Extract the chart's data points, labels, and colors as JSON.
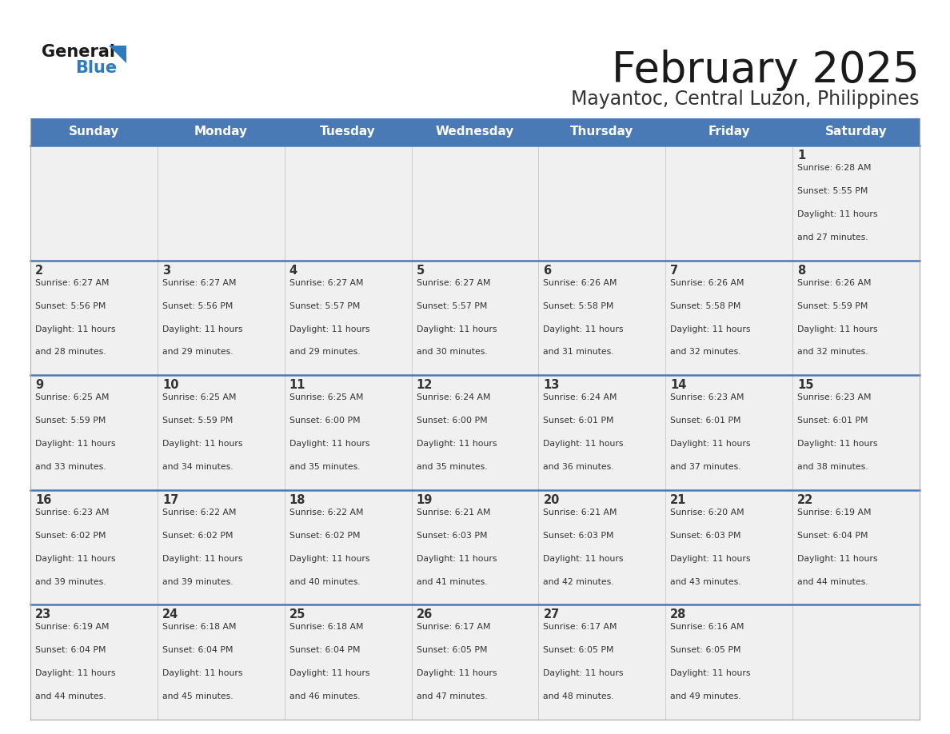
{
  "title": "February 2025",
  "subtitle": "Mayantoc, Central Luzon, Philippines",
  "header_bg_color": "#4a7ab5",
  "header_text_color": "#ffffff",
  "days_of_week": [
    "Sunday",
    "Monday",
    "Tuesday",
    "Wednesday",
    "Thursday",
    "Friday",
    "Saturday"
  ],
  "cell_bg_color": "#f0f0f0",
  "separator_color": "#4a7ab5",
  "text_color": "#333333",
  "title_color": "#1a1a1a",
  "subtitle_color": "#333333",
  "logo_general_color": "#1a1a1a",
  "logo_blue_color": "#2e7bbf",
  "logo_tri_color": "#2e7bbf",
  "calendar": [
    [
      null,
      null,
      null,
      null,
      null,
      null,
      {
        "day": 1,
        "sunrise": "6:28 AM",
        "sunset": "5:55 PM",
        "daylight": "11 hours and 27 minutes"
      }
    ],
    [
      {
        "day": 2,
        "sunrise": "6:27 AM",
        "sunset": "5:56 PM",
        "daylight": "11 hours and 28 minutes"
      },
      {
        "day": 3,
        "sunrise": "6:27 AM",
        "sunset": "5:56 PM",
        "daylight": "11 hours and 29 minutes"
      },
      {
        "day": 4,
        "sunrise": "6:27 AM",
        "sunset": "5:57 PM",
        "daylight": "11 hours and 29 minutes"
      },
      {
        "day": 5,
        "sunrise": "6:27 AM",
        "sunset": "5:57 PM",
        "daylight": "11 hours and 30 minutes"
      },
      {
        "day": 6,
        "sunrise": "6:26 AM",
        "sunset": "5:58 PM",
        "daylight": "11 hours and 31 minutes"
      },
      {
        "day": 7,
        "sunrise": "6:26 AM",
        "sunset": "5:58 PM",
        "daylight": "11 hours and 32 minutes"
      },
      {
        "day": 8,
        "sunrise": "6:26 AM",
        "sunset": "5:59 PM",
        "daylight": "11 hours and 32 minutes"
      }
    ],
    [
      {
        "day": 9,
        "sunrise": "6:25 AM",
        "sunset": "5:59 PM",
        "daylight": "11 hours and 33 minutes"
      },
      {
        "day": 10,
        "sunrise": "6:25 AM",
        "sunset": "5:59 PM",
        "daylight": "11 hours and 34 minutes"
      },
      {
        "day": 11,
        "sunrise": "6:25 AM",
        "sunset": "6:00 PM",
        "daylight": "11 hours and 35 minutes"
      },
      {
        "day": 12,
        "sunrise": "6:24 AM",
        "sunset": "6:00 PM",
        "daylight": "11 hours and 35 minutes"
      },
      {
        "day": 13,
        "sunrise": "6:24 AM",
        "sunset": "6:01 PM",
        "daylight": "11 hours and 36 minutes"
      },
      {
        "day": 14,
        "sunrise": "6:23 AM",
        "sunset": "6:01 PM",
        "daylight": "11 hours and 37 minutes"
      },
      {
        "day": 15,
        "sunrise": "6:23 AM",
        "sunset": "6:01 PM",
        "daylight": "11 hours and 38 minutes"
      }
    ],
    [
      {
        "day": 16,
        "sunrise": "6:23 AM",
        "sunset": "6:02 PM",
        "daylight": "11 hours and 39 minutes"
      },
      {
        "day": 17,
        "sunrise": "6:22 AM",
        "sunset": "6:02 PM",
        "daylight": "11 hours and 39 minutes"
      },
      {
        "day": 18,
        "sunrise": "6:22 AM",
        "sunset": "6:02 PM",
        "daylight": "11 hours and 40 minutes"
      },
      {
        "day": 19,
        "sunrise": "6:21 AM",
        "sunset": "6:03 PM",
        "daylight": "11 hours and 41 minutes"
      },
      {
        "day": 20,
        "sunrise": "6:21 AM",
        "sunset": "6:03 PM",
        "daylight": "11 hours and 42 minutes"
      },
      {
        "day": 21,
        "sunrise": "6:20 AM",
        "sunset": "6:03 PM",
        "daylight": "11 hours and 43 minutes"
      },
      {
        "day": 22,
        "sunrise": "6:19 AM",
        "sunset": "6:04 PM",
        "daylight": "11 hours and 44 minutes"
      }
    ],
    [
      {
        "day": 23,
        "sunrise": "6:19 AM",
        "sunset": "6:04 PM",
        "daylight": "11 hours and 44 minutes"
      },
      {
        "day": 24,
        "sunrise": "6:18 AM",
        "sunset": "6:04 PM",
        "daylight": "11 hours and 45 minutes"
      },
      {
        "day": 25,
        "sunrise": "6:18 AM",
        "sunset": "6:04 PM",
        "daylight": "11 hours and 46 minutes"
      },
      {
        "day": 26,
        "sunrise": "6:17 AM",
        "sunset": "6:05 PM",
        "daylight": "11 hours and 47 minutes"
      },
      {
        "day": 27,
        "sunrise": "6:17 AM",
        "sunset": "6:05 PM",
        "daylight": "11 hours and 48 minutes"
      },
      {
        "day": 28,
        "sunrise": "6:16 AM",
        "sunset": "6:05 PM",
        "daylight": "11 hours and 49 minutes"
      },
      null
    ]
  ]
}
